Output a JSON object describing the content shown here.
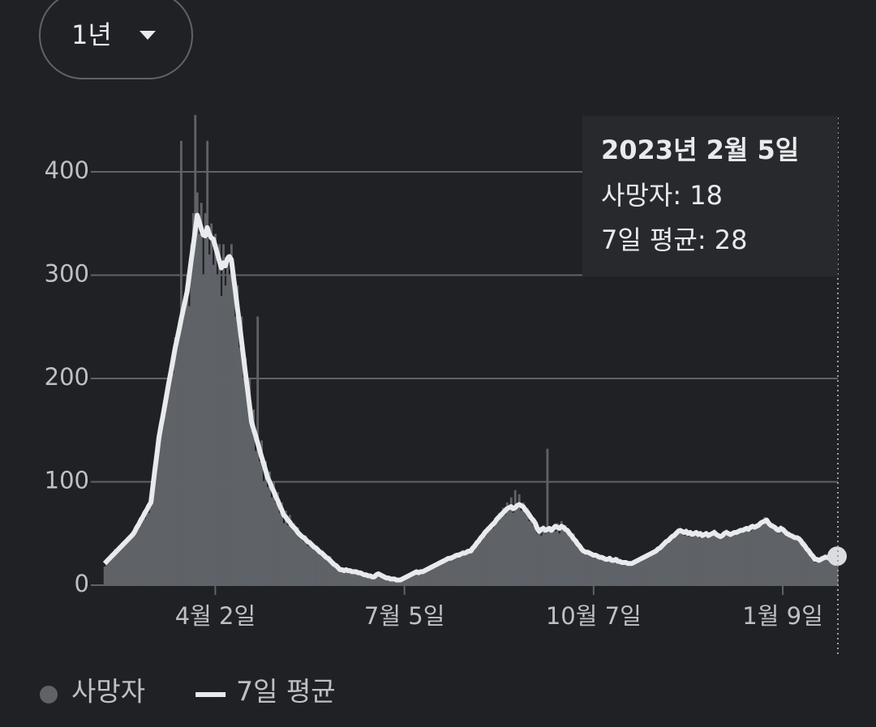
{
  "control": {
    "range_button": "1년"
  },
  "tooltip": {
    "date": "2023년 2월 5일",
    "lines": [
      "사망자: 18",
      "7일 평균: 28"
    ]
  },
  "chart_data": {
    "type": "bar",
    "ylim": [
      0,
      450
    ],
    "yticks": [
      0,
      100,
      200,
      300,
      400
    ],
    "grid": true,
    "categories": [
      null,
      null,
      null,
      null,
      null,
      null,
      null,
      null,
      null,
      null,
      null,
      null,
      null,
      null,
      null,
      null,
      null,
      null,
      null,
      null,
      null,
      null,
      null,
      null,
      null,
      null,
      null,
      null,
      null,
      null,
      null,
      null,
      null,
      null,
      null,
      null,
      null,
      null,
      null,
      null,
      null,
      null,
      null,
      null,
      null,
      null,
      null,
      null,
      null,
      null,
      null,
      null,
      null,
      null,
      null,
      "4월 2일",
      null,
      null,
      null,
      null,
      null,
      null,
      null,
      null,
      null,
      null,
      null,
      null,
      null,
      null,
      null,
      null,
      null,
      null,
      null,
      null,
      null,
      null,
      null,
      null,
      null,
      null,
      null,
      null,
      null,
      null,
      null,
      null,
      null,
      null,
      null,
      null,
      null,
      null,
      null,
      null,
      null,
      null,
      null,
      null,
      null,
      null,
      null,
      null,
      null,
      null,
      null,
      null,
      null,
      null,
      null,
      null,
      null,
      null,
      null,
      null,
      null,
      null,
      null,
      null,
      null,
      null,
      null,
      null,
      null,
      null,
      null,
      null,
      null,
      null,
      null,
      null,
      null,
      null,
      null,
      null,
      null,
      null,
      null,
      null,
      null,
      null,
      null,
      null,
      null,
      null,
      null,
      null,
      null,
      "7월 5일",
      null,
      null,
      null,
      null,
      null,
      null,
      null,
      null,
      null,
      null,
      null,
      null,
      null,
      null,
      null,
      null,
      null,
      null,
      null,
      null,
      null,
      null,
      null,
      null,
      null,
      null,
      null,
      null,
      null,
      null,
      null,
      null,
      null,
      null,
      null,
      null,
      null,
      null,
      null,
      null,
      null,
      null,
      null,
      null,
      null,
      null,
      null,
      null,
      null,
      null,
      null,
      null,
      null,
      null,
      null,
      null,
      null,
      null,
      null,
      null,
      null,
      null,
      null,
      null,
      null,
      null,
      null,
      null,
      null,
      null,
      null,
      null,
      null,
      null,
      null,
      null,
      null,
      null,
      null,
      null,
      null,
      null,
      null,
      null,
      null,
      null,
      null,
      null,
      null,
      null,
      null,
      null,
      null,
      "10월 7일",
      null,
      null,
      null,
      null,
      null,
      null,
      null,
      null,
      null,
      null,
      null,
      null,
      null,
      null,
      null,
      null,
      null,
      null,
      null,
      null,
      null,
      null,
      null,
      null,
      null,
      null,
      null,
      null,
      null,
      null,
      null,
      null,
      null,
      null,
      null,
      null,
      null,
      null,
      null,
      null,
      null,
      null,
      null,
      null,
      null,
      null,
      null,
      null,
      null,
      null,
      null,
      null,
      null,
      null,
      null,
      null,
      null,
      null,
      null,
      null,
      null,
      null,
      null,
      null,
      null,
      null,
      null,
      null,
      null,
      null,
      null,
      null,
      null,
      null,
      null,
      null,
      null,
      null,
      null,
      null,
      null,
      null,
      null,
      null,
      null,
      null,
      null,
      null,
      null,
      null,
      null,
      null,
      null,
      "1월 9일",
      null,
      null,
      null,
      null,
      null,
      null,
      null,
      null,
      null,
      null,
      null,
      null,
      null,
      null,
      null,
      null,
      null,
      null,
      null,
      null,
      null,
      null,
      null,
      null,
      null,
      null,
      null
    ],
    "series": [
      {
        "name": "사망자",
        "color": "#5f6368",
        "values": [
          18,
          25,
          22,
          30,
          27,
          35,
          31,
          38,
          36,
          42,
          40,
          45,
          44,
          50,
          47,
          55,
          52,
          62,
          58,
          68,
          64,
          75,
          70,
          84,
          90,
          118,
          120,
          150,
          148,
          170,
          165,
          195,
          190,
          212,
          205,
          240,
          230,
          255,
          430,
          262,
          280,
          300,
          270,
          330,
          360,
          455,
          380,
          340,
          370,
          300,
          360,
          430,
          320,
          350,
          310,
          340,
          300,
          330,
          280,
          330,
          290,
          320,
          300,
          330,
          310,
          260,
          290,
          230,
          260,
          200,
          220,
          180,
          200,
          150,
          170,
          130,
          260,
          120,
          140,
          100,
          120,
          95,
          110,
          85,
          100,
          80,
          90,
          70,
          80,
          60,
          72,
          58,
          68,
          55,
          60,
          50,
          56,
          45,
          50,
          42,
          48,
          38,
          44,
          36,
          40,
          33,
          37,
          30,
          34,
          26,
          30,
          24,
          28,
          20,
          23,
          17,
          19,
          13,
          17,
          12,
          16,
          13,
          15,
          11,
          14,
          12,
          13,
          10,
          12,
          9,
          11,
          8,
          10,
          7,
          9,
          9,
          12,
          10,
          10,
          7,
          9,
          6,
          7,
          5,
          7,
          4,
          6,
          4,
          7,
          6,
          9,
          8,
          11,
          9,
          12,
          12,
          13,
          11,
          15,
          13,
          17,
          15,
          19,
          17,
          21,
          19,
          23,
          21,
          25,
          22,
          28,
          24,
          29,
          25,
          31,
          27,
          32,
          28,
          34,
          29,
          35,
          31,
          37,
          34,
          40,
          38,
          45,
          42,
          50,
          47,
          56,
          52,
          60,
          55,
          65,
          60,
          70,
          65,
          75,
          68,
          80,
          72,
          85,
          70,
          92,
          75,
          88,
          72,
          80,
          70,
          75,
          62,
          68,
          58,
          62,
          50,
          56,
          48,
          58,
          50,
          132,
          52,
          55,
          58,
          52,
          60,
          50,
          62,
          54,
          58,
          50,
          52,
          46,
          50,
          40,
          44,
          36,
          38,
          30,
          34,
          30,
          33,
          28,
          31,
          26,
          30,
          25,
          29,
          24,
          27,
          23,
          28,
          22,
          26,
          23,
          27,
          21,
          24,
          20,
          23,
          19,
          22,
          20,
          24,
          21,
          26,
          23,
          28,
          25,
          30,
          27,
          32,
          29,
          34,
          31,
          37,
          34,
          40,
          37,
          44,
          40,
          47,
          44,
          50,
          47,
          55,
          51,
          54,
          48,
          55,
          47,
          53,
          46,
          52,
          49,
          51,
          46,
          50,
          47,
          52,
          46,
          50,
          48,
          54,
          47,
          50,
          45,
          49,
          52,
          54,
          48,
          51,
          52,
          49,
          53,
          50,
          55,
          51,
          56,
          53,
          57,
          52,
          59,
          55,
          60,
          56,
          63,
          58,
          66,
          61,
          62,
          57,
          60,
          54,
          57,
          50,
          58,
          52,
          55,
          48,
          52,
          45,
          50,
          44,
          48,
          42,
          45,
          38,
          42,
          33,
          36,
          28,
          30,
          22,
          27,
          22,
          28,
          24,
          30,
          25,
          29,
          24,
          31,
          26,
          18
        ]
      },
      {
        "name": "7일 평균",
        "color": "#e8eaed",
        "type": "line",
        "values": [
          21,
          23,
          25,
          27,
          29,
          31,
          33,
          35,
          37,
          39,
          41,
          43,
          45,
          47,
          49,
          52,
          56,
          59,
          63,
          66,
          70,
          73,
          77,
          80,
          96,
          112,
          127,
          143,
          154,
          164,
          175,
          186,
          197,
          207,
          218,
          229,
          238,
          247,
          257,
          266,
          275,
          284,
          299,
          314,
          328,
          343,
          358,
          352,
          345,
          339,
          338,
          346,
          340,
          336,
          335,
          328,
          321,
          314,
          307,
          312,
          309,
          316,
          318,
          315,
          299,
          284,
          268,
          253,
          237,
          221,
          205,
          190,
          174,
          158,
          151,
          145,
          138,
          131,
          124,
          118,
          111,
          104,
          100,
          95,
          91,
          86,
          82,
          77,
          73,
          68,
          66,
          63,
          61,
          58,
          56,
          54,
          51,
          49,
          47,
          46,
          44,
          42,
          41,
          39,
          37,
          36,
          34,
          32,
          31,
          29,
          27,
          26,
          24,
          22,
          20,
          19,
          17,
          15,
          15,
          14,
          15,
          14,
          14,
          13,
          13,
          13,
          12,
          12,
          11,
          10,
          10,
          9,
          9,
          8,
          8,
          10,
          11,
          10,
          9,
          8,
          7,
          7,
          6,
          6,
          6,
          5,
          5,
          5,
          6,
          7,
          8,
          9,
          10,
          11,
          12,
          13,
          12,
          13,
          13,
          14,
          15,
          16,
          17,
          18,
          19,
          20,
          21,
          22,
          23,
          24,
          25,
          26,
          26,
          27,
          28,
          29,
          29,
          30,
          31,
          31,
          32,
          33,
          33,
          36,
          38,
          41,
          43,
          46,
          48,
          51,
          53,
          55,
          57,
          59,
          61,
          64,
          66,
          68,
          70,
          72,
          74,
          75,
          76,
          74,
          75,
          77,
          78,
          77,
          76,
          73,
          71,
          68,
          65,
          63,
          60,
          55,
          52,
          54,
          55,
          53,
          54,
          55,
          53,
          55,
          57,
          56,
          55,
          57,
          56,
          54,
          53,
          50,
          48,
          45,
          43,
          40,
          38,
          35,
          33,
          32,
          32,
          31,
          30,
          29,
          29,
          28,
          27,
          27,
          26,
          25,
          25,
          26,
          24,
          24,
          25,
          23,
          23,
          22,
          22,
          22,
          21,
          21,
          21,
          22,
          23,
          24,
          25,
          26,
          27,
          28,
          29,
          30,
          31,
          32,
          33,
          35,
          36,
          38,
          40,
          42,
          43,
          45,
          47,
          48,
          50,
          52,
          53,
          52,
          51,
          52,
          50,
          51,
          49,
          50,
          51,
          49,
          50,
          48,
          49,
          50,
          48,
          49,
          50,
          51,
          49,
          48,
          47,
          48,
          50,
          51,
          50,
          49,
          50,
          51,
          51,
          52,
          53,
          53,
          54,
          55,
          54,
          56,
          57,
          56,
          57,
          58,
          60,
          61,
          62,
          63,
          60,
          58,
          57,
          56,
          54,
          53,
          55,
          54,
          52,
          50,
          49,
          48,
          47,
          46,
          46,
          45,
          43,
          40,
          38,
          35,
          33,
          30,
          28,
          25,
          25,
          24,
          25,
          26,
          27,
          27,
          26,
          27,
          28,
          28,
          28
        ]
      }
    ]
  }
}
